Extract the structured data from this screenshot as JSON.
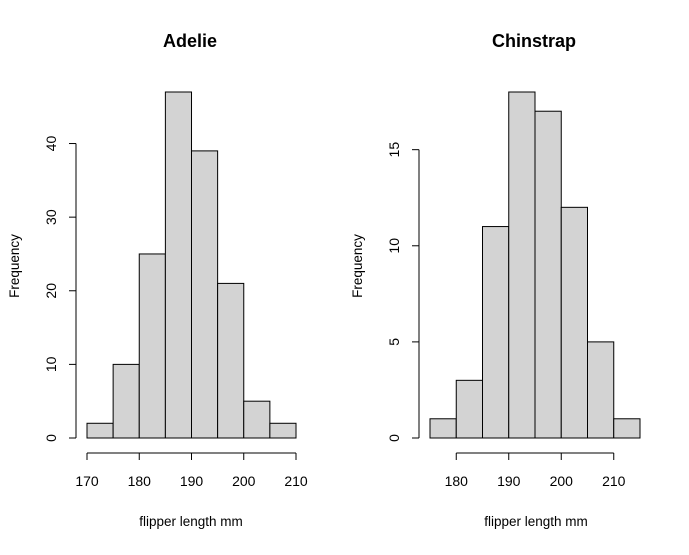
{
  "chart_data": [
    {
      "type": "bar",
      "title": "Adelie",
      "xlabel": "flipper length mm",
      "ylabel": "Frequency",
      "bins": [
        [
          170,
          175
        ],
        [
          175,
          180
        ],
        [
          180,
          185
        ],
        [
          185,
          190
        ],
        [
          190,
          195
        ],
        [
          195,
          200
        ],
        [
          200,
          205
        ],
        [
          205,
          210
        ]
      ],
      "values": [
        2,
        10,
        25,
        47,
        39,
        21,
        5,
        2
      ],
      "xlim": [
        170,
        210
      ],
      "ylim": [
        0,
        47
      ],
      "x_ticks": [
        "170",
        "180",
        "190",
        "200",
        "210"
      ],
      "y_ticks": [
        "0",
        "10",
        "20",
        "30",
        "40"
      ],
      "bar_fill": "#d3d3d3",
      "grid": false,
      "legend": "none"
    },
    {
      "type": "bar",
      "title": "Chinstrap",
      "xlabel": "flipper length mm",
      "ylabel": "Frequency",
      "bins": [
        [
          175,
          180
        ],
        [
          180,
          185
        ],
        [
          185,
          190
        ],
        [
          190,
          195
        ],
        [
          195,
          200
        ],
        [
          200,
          205
        ],
        [
          205,
          210
        ],
        [
          210,
          215
        ]
      ],
      "values": [
        1,
        3,
        11,
        18,
        17,
        12,
        5,
        1
      ],
      "xlim": [
        175,
        215
      ],
      "ylim": [
        0,
        18
      ],
      "x_ticks": [
        "180",
        "190",
        "200",
        "210"
      ],
      "y_ticks": [
        "0",
        "5",
        "10",
        "15"
      ],
      "bar_fill": "#d3d3d3",
      "grid": false,
      "legend": "none"
    }
  ]
}
